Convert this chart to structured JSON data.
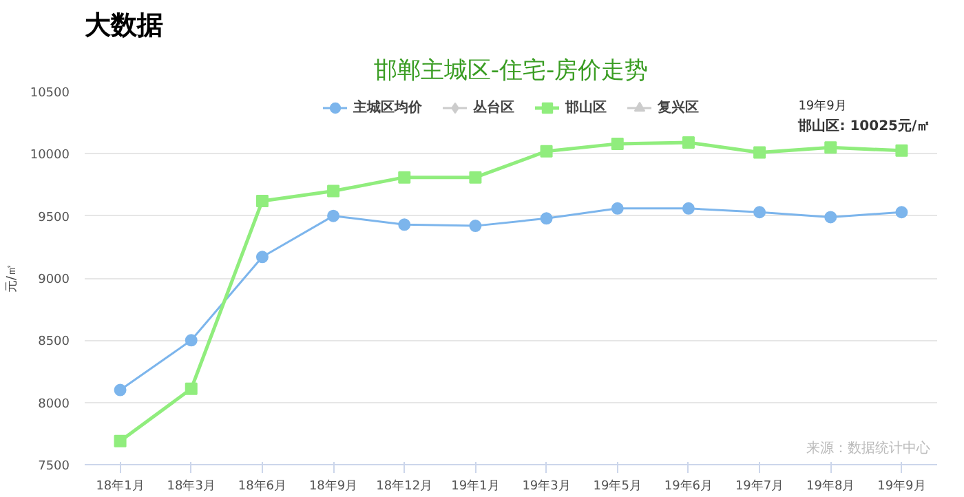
{
  "chart_data": {
    "type": "line",
    "title": "大数据",
    "subtitle": "邯郸主城区-住宅-房价走势",
    "ylabel": "元/㎡",
    "categories": [
      "18年1月",
      "18年3月",
      "18年6月",
      "18年9月",
      "18年12月",
      "19年1月",
      "19年3月",
      "19年5月",
      "19年6月",
      "19年7月",
      "19年8月",
      "19年9月"
    ],
    "series": [
      {
        "name": "主城区均价",
        "color": "#7cb5ec",
        "marker": "circle",
        "values": [
          8100,
          8500,
          9170,
          9500,
          9430,
          9420,
          9480,
          9560,
          9560,
          9530,
          9490,
          9530
        ]
      },
      {
        "name": "丛台区",
        "color": "#cccccc",
        "marker": "diamond",
        "values": [
          null,
          null,
          null,
          null,
          null,
          null,
          null,
          null,
          null,
          null,
          null,
          null
        ]
      },
      {
        "name": "邯山区",
        "color": "#90ed7d",
        "marker": "square",
        "values": [
          7690,
          8110,
          9620,
          9700,
          9810,
          9810,
          10020,
          10080,
          10090,
          10010,
          10050,
          10025
        ]
      },
      {
        "name": "复兴区",
        "color": "#cccccc",
        "marker": "triangle",
        "values": [
          null,
          null,
          null,
          null,
          null,
          null,
          null,
          null,
          null,
          null,
          null,
          null
        ]
      }
    ],
    "ylim": [
      7500,
      10500
    ],
    "yticks": [
      7500,
      8000,
      8500,
      9000,
      9500,
      10000,
      10500
    ],
    "grid": "y",
    "legend": "top",
    "annotations": [
      "19年9月",
      {
        "text": "邯山区: 10025元/㎡",
        "x": "19年9月",
        "y": 10025
      },
      "来源：数据统计中心"
    ]
  }
}
